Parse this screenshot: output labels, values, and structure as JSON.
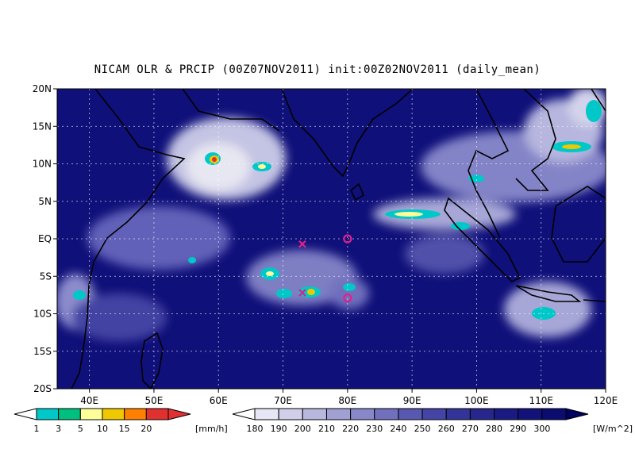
{
  "title": "NICAM OLR & PRCIP (00Z07NOV2011) init:00Z02NOV2011 (daily_mean)",
  "map": {
    "lat_ticks": [
      "20N",
      "15N",
      "10N",
      "5N",
      "EQ",
      "5S",
      "10S",
      "15S",
      "20S"
    ],
    "lon_ticks": [
      "40E",
      "50E",
      "60E",
      "70E",
      "80E",
      "90E",
      "100E",
      "110E",
      "120E"
    ],
    "lon_range": [
      35,
      120
    ],
    "lat_range": [
      -20,
      20
    ],
    "grid": true,
    "background_color": "#10107a"
  },
  "markers": [
    {
      "type": "x",
      "lon": 73,
      "lat": -0.7,
      "color": "#e0208a"
    },
    {
      "type": "x",
      "lon": 73,
      "lat": -7.2,
      "color": "#e0208a"
    },
    {
      "type": "o",
      "lon": 80,
      "lat": 0.0,
      "color": "#e0208a"
    },
    {
      "type": "o",
      "lon": 80,
      "lat": -7.9,
      "color": "#e0208a"
    }
  ],
  "precip_legend": {
    "labels": [
      "1",
      "3",
      "5",
      "10",
      "15",
      "20"
    ],
    "unit": "[mm/h]",
    "colors": [
      "#00c8c8",
      "#00c080",
      "#ffff99",
      "#f0c800",
      "#ff8000",
      "#e03030"
    ]
  },
  "olr_legend": {
    "labels": [
      "180",
      "190",
      "200",
      "210",
      "220",
      "230",
      "240",
      "250",
      "260",
      "270",
      "280",
      "290",
      "300"
    ],
    "unit": "[W/m^2]",
    "colors": [
      "#e6e6f5",
      "#cfcfea",
      "#b8b8df",
      "#a0a0d4",
      "#8888c8",
      "#7070bc",
      "#5858b0",
      "#4444a4",
      "#343498",
      "#26268c",
      "#1a1a82",
      "#12127a",
      "#0c0c70"
    ]
  }
}
